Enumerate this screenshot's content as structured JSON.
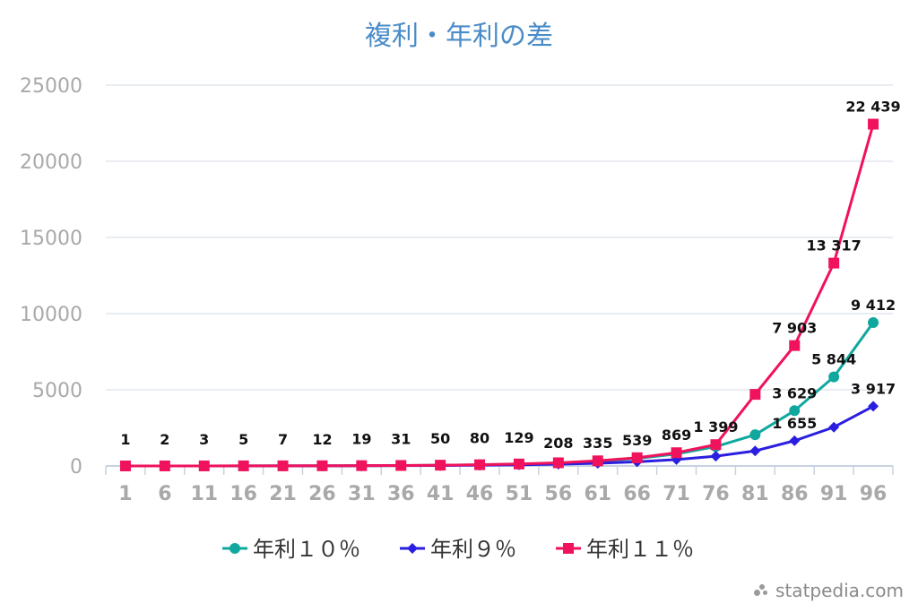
{
  "chart_data": {
    "type": "line",
    "title": "複利・年利の差",
    "xlabel": "",
    "ylabel": "",
    "x": [
      1,
      6,
      11,
      16,
      21,
      26,
      31,
      36,
      41,
      46,
      51,
      56,
      61,
      66,
      71,
      76,
      81,
      86,
      91,
      96
    ],
    "ylim": [
      0,
      25000
    ],
    "yticks": [
      0,
      5000,
      10000,
      15000,
      20000,
      25000
    ],
    "grid": true,
    "legend_position": "bottom",
    "series": [
      {
        "name": "年利１０％",
        "color": "#10a89e",
        "marker": "circle",
        "values": [
          1,
          1.6,
          2.6,
          4.2,
          6.7,
          10.8,
          17.4,
          28.1,
          45.3,
          72.9,
          117,
          189,
          304,
          490,
          789,
          1271,
          2048,
          3629,
          5844,
          9412
        ],
        "data_labels": [
          null,
          null,
          null,
          null,
          null,
          null,
          null,
          null,
          null,
          null,
          null,
          null,
          null,
          null,
          null,
          null,
          null,
          "3 629",
          "5 844",
          "9 412"
        ]
      },
      {
        "name": "年利９％",
        "color": "#2a1fe0",
        "marker": "diamond",
        "values": [
          1,
          1.5,
          2.4,
          3.6,
          5.6,
          8.6,
          13.3,
          20.4,
          31.4,
          48.3,
          74.4,
          114,
          176,
          271,
          417,
          642,
          987,
          1655,
          2545,
          3917
        ],
        "data_labels": [
          null,
          null,
          null,
          null,
          null,
          null,
          null,
          null,
          null,
          null,
          null,
          null,
          null,
          null,
          null,
          null,
          null,
          "1 655",
          null,
          "3 917"
        ]
      },
      {
        "name": "年利１１％",
        "color": "#f0125c",
        "marker": "square",
        "values": [
          1,
          2,
          3,
          5,
          7,
          12,
          19,
          31,
          50,
          80,
          129,
          208,
          335,
          539,
          869,
          1399,
          4700,
          7903,
          13317,
          22439
        ],
        "data_labels": [
          "1",
          "2",
          "3",
          "5",
          "7",
          "12",
          "19",
          "31",
          "50",
          "80",
          "129",
          "208",
          "335",
          "539",
          "869",
          "1 399",
          null,
          "7 903",
          "13 317",
          "22 439"
        ]
      }
    ]
  },
  "watermark": "statpedia.com"
}
